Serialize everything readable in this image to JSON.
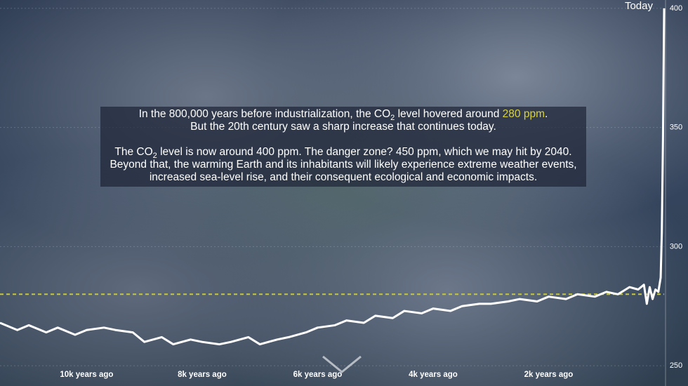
{
  "chart_data": {
    "type": "line",
    "today_label": "Today",
    "annotation": [
      [
        "In the 800,000 years before industrialization, the CO",
        "2",
        " level hovered around ",
        "280 ppm",
        ".",
        "But the 20th century saw a sharp increase that continues today."
      ],
      [
        "The CO",
        "2",
        " level is now around 400 ppm. The danger zone? 450 ppm, which we may hit by 2040. Beyond that, the warming Earth and its inhabitants will likely experience extreme weather events, increased sea-level rise, and their consequent ecological and economic impacts."
      ]
    ],
    "x": [
      -11500,
      -11200,
      -11000,
      -10700,
      -10500,
      -10200,
      -10000,
      -9700,
      -9500,
      -9200,
      -9000,
      -8700,
      -8500,
      -8200,
      -8000,
      -7700,
      -7500,
      -7200,
      -7000,
      -6700,
      -6500,
      -6200,
      -6000,
      -5700,
      -5500,
      -5200,
      -5000,
      -4700,
      -4500,
      -4200,
      -4000,
      -3700,
      -3500,
      -3200,
      -3000,
      -2700,
      -2500,
      -2200,
      -2000,
      -1700,
      -1500,
      -1200,
      -1000,
      -800,
      -600,
      -450,
      -350,
      -300,
      -250,
      -200,
      -150,
      -100,
      -60,
      -40,
      -20,
      0
    ],
    "series": [
      {
        "name": "CO2",
        "color": "#ffffff",
        "values": [
          268,
          265,
          267,
          264,
          266,
          263,
          265,
          266,
          265,
          264,
          260,
          262,
          259,
          261,
          260,
          259,
          260,
          262,
          259,
          261,
          262,
          264,
          266,
          267,
          269,
          268,
          271,
          270,
          273,
          272,
          274,
          273,
          275,
          276,
          276,
          277,
          278,
          277,
          279,
          278,
          280,
          279,
          281,
          280,
          283,
          282,
          284,
          276,
          283,
          278,
          282,
          281,
          287,
          306,
          345,
          400
        ]
      }
    ],
    "reference_line": {
      "value": 280,
      "color": "#c8c832"
    },
    "xlim": [
      -11500,
      0
    ],
    "xticks": [
      {
        "value": -10000,
        "label": "10k years ago"
      },
      {
        "value": -8000,
        "label": "8k years ago"
      },
      {
        "value": -6000,
        "label": "6k years ago"
      },
      {
        "value": -4000,
        "label": "4k years ago"
      },
      {
        "value": -2000,
        "label": "2k years ago"
      }
    ],
    "ylim": [
      241.5,
      403.5
    ],
    "yticks": [
      250,
      300,
      350,
      400
    ],
    "grid": true
  }
}
